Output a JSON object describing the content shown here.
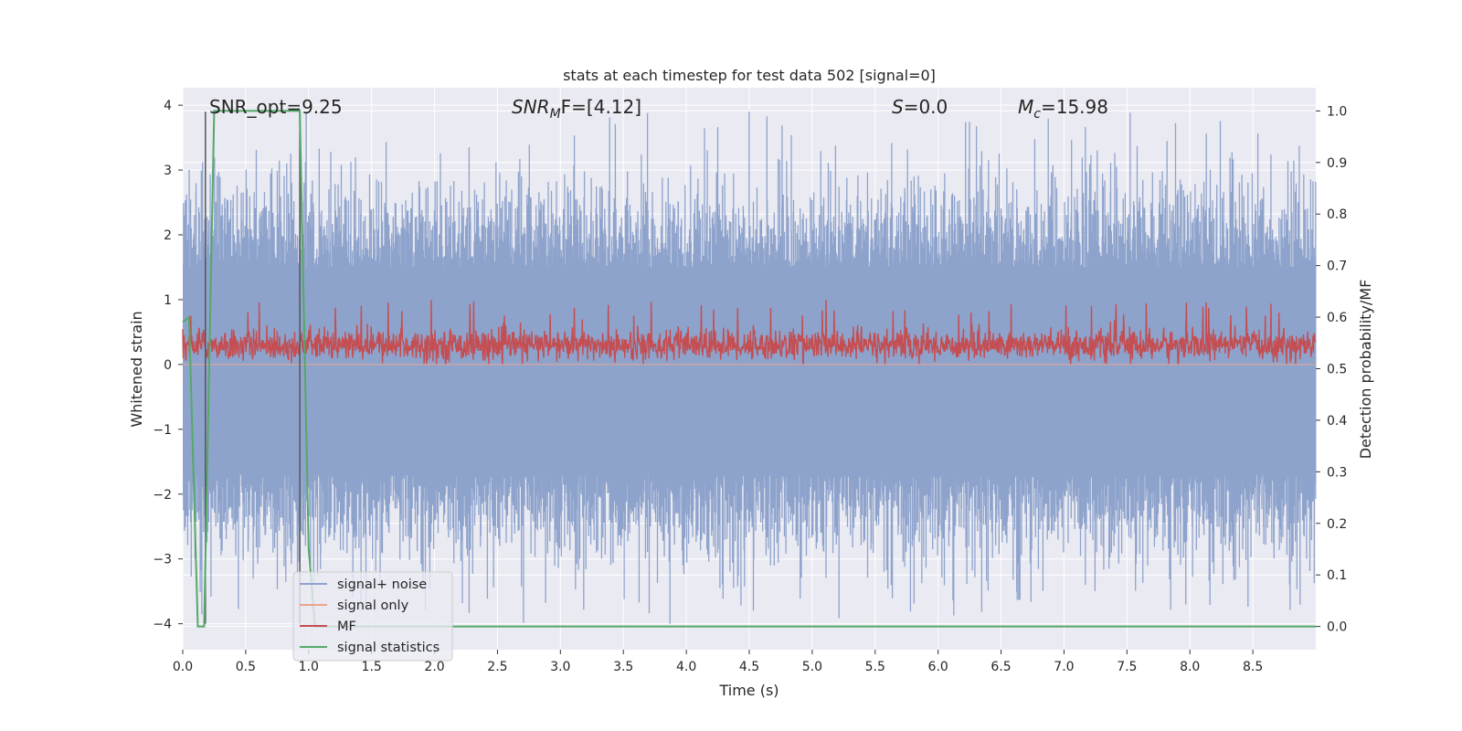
{
  "chart_data": {
    "type": "line",
    "title": "stats at each timestep for test data 502 [signal=0]",
    "xlabel": "Time (s)",
    "ylabel": "Whitened strain",
    "ylabel_right": "Detection probability/MF",
    "xlim": [
      0.0,
      9.0
    ],
    "ylim_left": [
      -4.4,
      4.27
    ],
    "ylim_right": [
      -0.045,
      1.045
    ],
    "x_ticks": [
      "0.0",
      "0.5",
      "1.0",
      "1.5",
      "2.0",
      "2.5",
      "3.0",
      "3.5",
      "4.0",
      "4.5",
      "5.0",
      "5.5",
      "6.0",
      "6.5",
      "7.0",
      "7.5",
      "8.0",
      "8.5"
    ],
    "y_ticks_left": [
      "−4",
      "−3",
      "−2",
      "−1",
      "0",
      "1",
      "2",
      "3",
      "4"
    ],
    "y_ticks_right": [
      "0.0",
      "0.1",
      "0.2",
      "0.3",
      "0.4",
      "0.5",
      "0.6",
      "0.7",
      "0.8",
      "0.9",
      "1.0"
    ],
    "grid": true,
    "annotations": {
      "snr_opt": "SNR_opt=9.25",
      "snr_mf_sym": "SNR",
      "snr_mf_sub": "M",
      "snr_mf_rest": "F=[4.12]",
      "s_sym": "S",
      "s_rest": "=0.0",
      "mc_sym": "M",
      "mc_sub": "c",
      "mc_rest": "=15.98"
    },
    "legend_position": "lower-left",
    "colors": {
      "noise": "#8ea3cc",
      "signal_only": "#eca48a",
      "mf": "#c44e52",
      "stats": "#55a868",
      "axes_bg": "#eaeaf2",
      "grid": "#ffffff",
      "vline": "#555555"
    },
    "series": [
      {
        "name": "signal+ noise",
        "description_of_values": "whitened strain noise, roughly in [-4, 3.9]",
        "envelope": {
          "core_min": -1.7,
          "core_max": 1.5,
          "peak_min": -4.0,
          "peak_max": 3.9
        }
      },
      {
        "name": "signal only",
        "values_constant": 0.0
      },
      {
        "name": "MF",
        "envelope": {
          "min": 0.0,
          "max": 1.0,
          "center": 0.3
        }
      },
      {
        "name": "signal statistics",
        "axis": "right",
        "x": [
          0.0,
          0.05,
          0.12,
          0.17,
          0.25,
          0.93,
          1.0,
          1.05,
          9.0
        ],
        "y": [
          0.59,
          0.6,
          0.0,
          0.0,
          1.0,
          1.0,
          0.15,
          0.0,
          0.0
        ]
      }
    ],
    "vlines": [
      0.18,
      0.93
    ]
  }
}
